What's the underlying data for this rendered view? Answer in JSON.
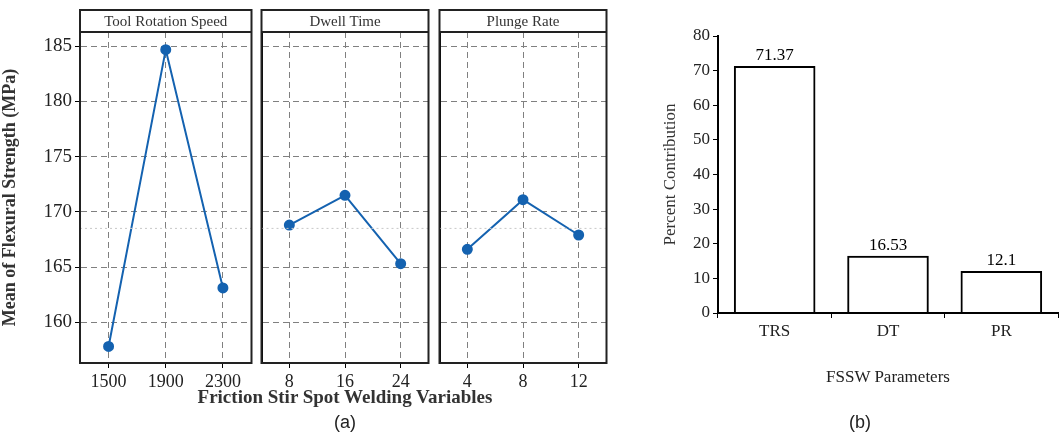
{
  "chart_data": [
    {
      "type": "line",
      "title": "Tool Rotation Speed",
      "ylabel": "Mean of Flexural Strength (MPa)",
      "categories": [
        "1500",
        "1900",
        "2300"
      ],
      "values": [
        157.8,
        184.7,
        163.1
      ],
      "color": "#1462b0",
      "ylim": [
        156.3,
        186.3
      ],
      "yticks": [
        160,
        165,
        170,
        175,
        180,
        185
      ],
      "grid": true,
      "marker": "circle",
      "line_style": "solid",
      "ref_lines": [
        {
          "axis": "y",
          "value": 168.5,
          "color": "#c8c8c8",
          "line_style": "dotted"
        }
      ]
    },
    {
      "type": "line",
      "title": "Dwell Time",
      "xlabel": "Friction Stir Spot Welding Variables",
      "annotations": [
        "(a)"
      ],
      "categories": [
        "8",
        "16",
        "24"
      ],
      "values": [
        168.8,
        171.5,
        165.3
      ],
      "color": "#1462b0",
      "ylim": [
        156.3,
        186.3
      ],
      "yticks": [
        160,
        165,
        170,
        175,
        180,
        185
      ],
      "tick_labels": "x",
      "grid": true,
      "marker": "circle",
      "line_style": "solid",
      "ref_lines": [
        {
          "axis": "y",
          "value": 168.5,
          "color": "#c8c8c8",
          "line_style": "dotted"
        }
      ]
    },
    {
      "type": "line",
      "title": "Plunge Rate",
      "categories": [
        "4",
        "8",
        "12"
      ],
      "values": [
        166.6,
        171.1,
        167.9
      ],
      "color": "#1462b0",
      "ylim": [
        156.3,
        186.3
      ],
      "yticks": [
        160,
        165,
        170,
        175,
        180,
        185
      ],
      "tick_labels": "x",
      "grid": true,
      "marker": "circle",
      "line_style": "solid",
      "ref_lines": [
        {
          "axis": "y",
          "value": 168.5,
          "color": "#c8c8c8",
          "line_style": "dotted"
        }
      ]
    },
    {
      "type": "bar",
      "xlabel": "FSSW Parameters",
      "ylabel": "Percent Contribution",
      "annotations": [
        "(b)"
      ],
      "categories": [
        "TRS",
        "DT",
        "PR"
      ],
      "values": [
        71.37,
        16.53,
        12.1
      ],
      "color": "#000000",
      "ylim": [
        0,
        80
      ],
      "yticks": [
        0,
        10,
        20,
        30,
        40,
        50,
        60,
        70,
        80
      ],
      "data_labels": true
    }
  ]
}
